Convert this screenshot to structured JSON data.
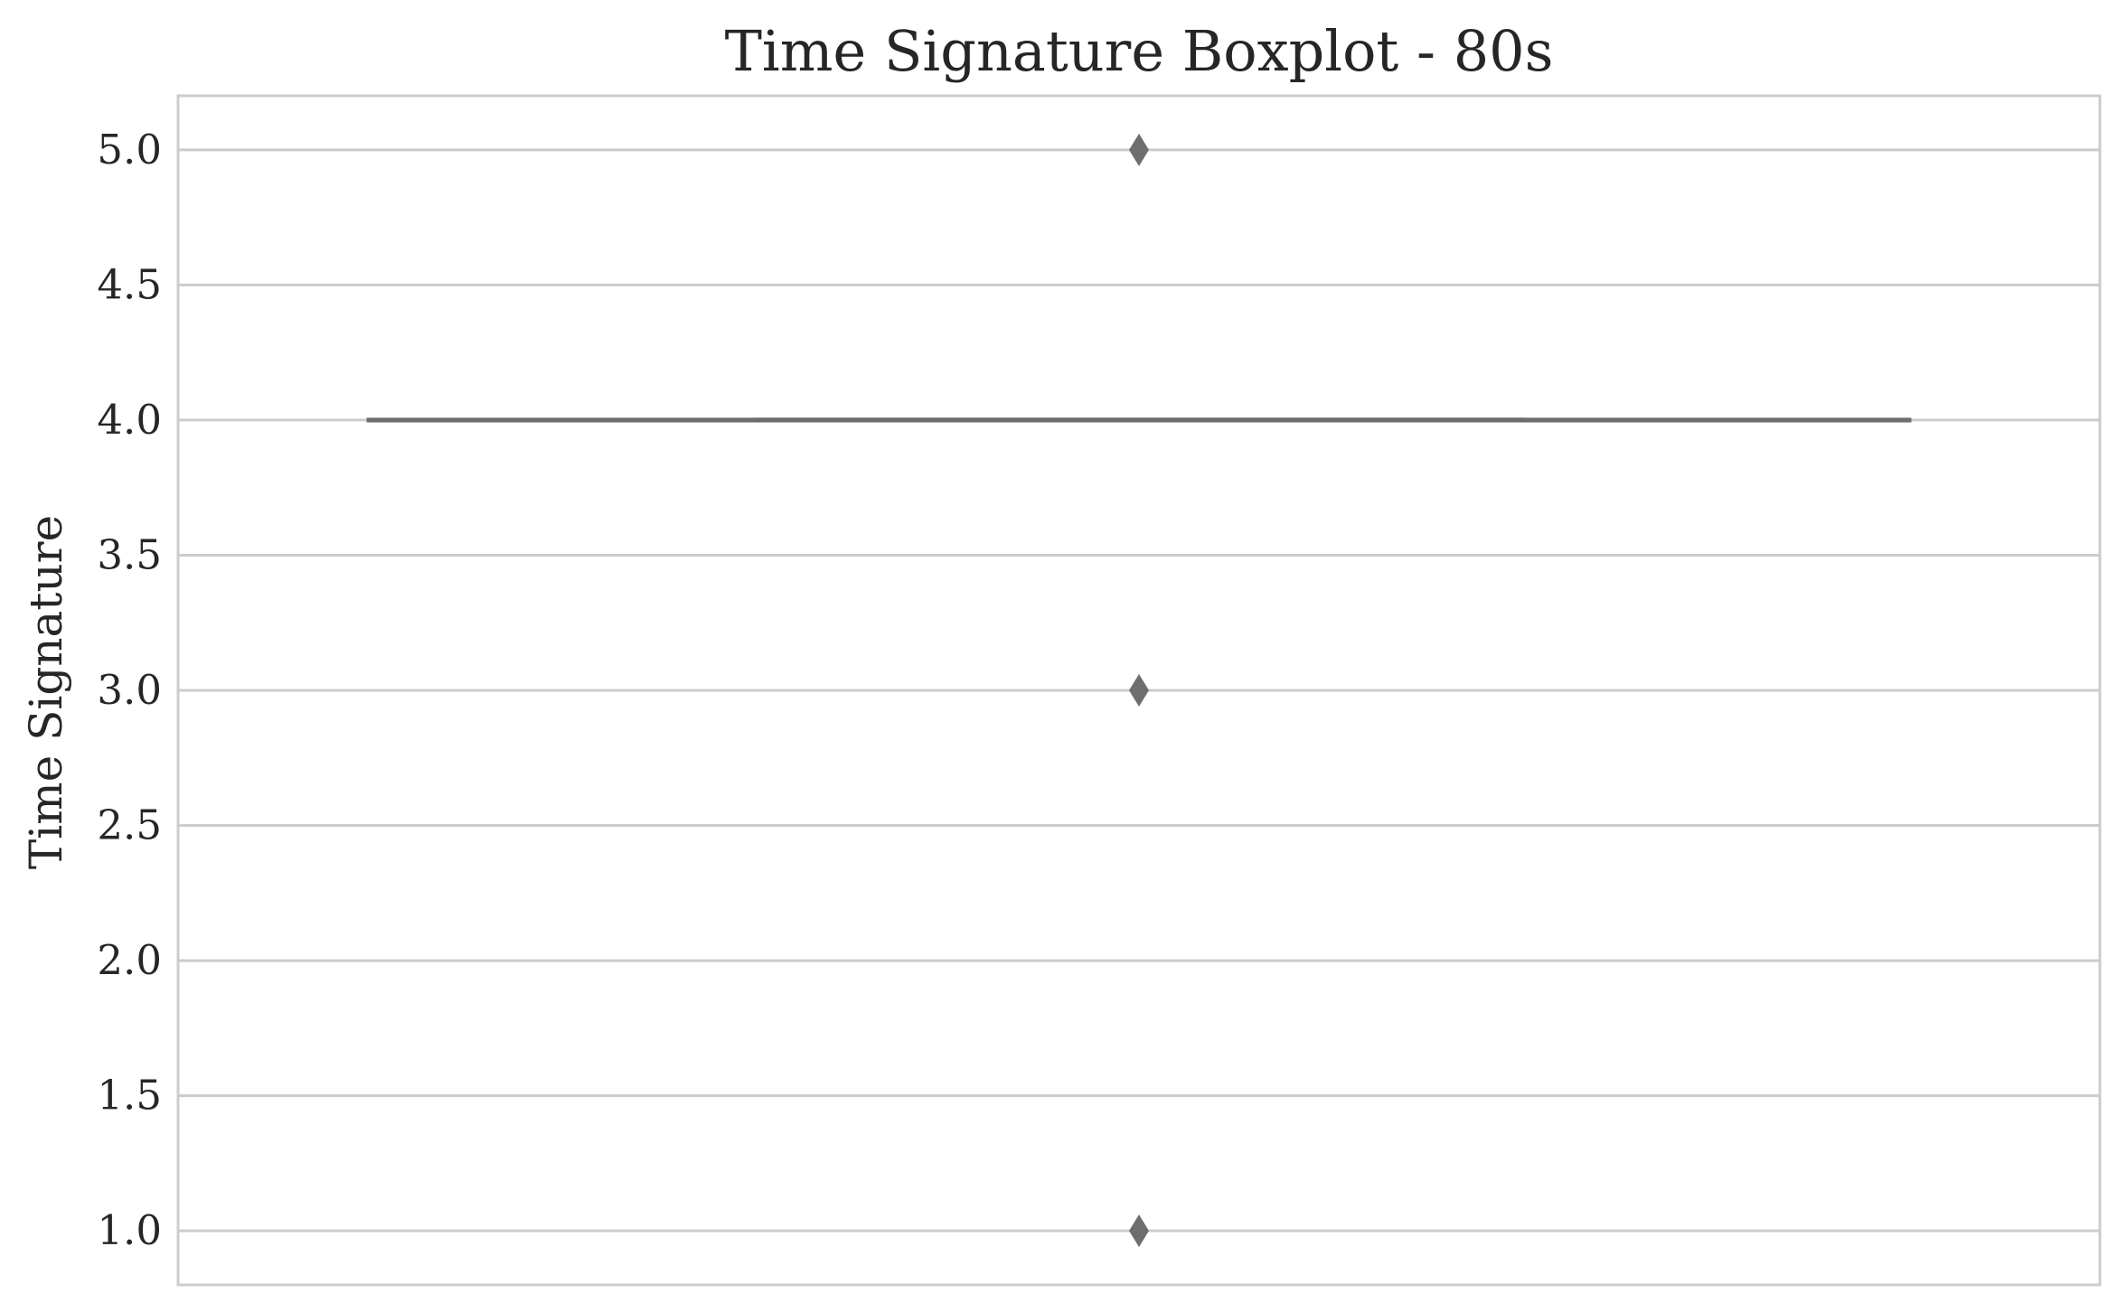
{
  "chart_data": {
    "type": "box",
    "title": "Time Signature Boxplot - 80s",
    "xlabel": "",
    "ylabel": "Time Signature",
    "ylim": [
      0.8,
      5.2
    ],
    "yticks": [
      1.0,
      1.5,
      2.0,
      2.5,
      3.0,
      3.5,
      4.0,
      4.5,
      5.0
    ],
    "ytick_labels": [
      "1.0",
      "1.5",
      "2.0",
      "2.5",
      "3.0",
      "3.5",
      "4.0",
      "4.5",
      "5.0"
    ],
    "grid": true,
    "box": {
      "whisker_low": 4.0,
      "q1": 4.0,
      "median": 4.0,
      "q3": 4.0,
      "whisker_high": 4.0,
      "outliers": [
        5.0,
        3.0,
        1.0
      ]
    },
    "colors": {
      "box": "#6e6e6e",
      "grid": "#cccccc",
      "spine": "#cccccc",
      "text": "#262626"
    }
  }
}
